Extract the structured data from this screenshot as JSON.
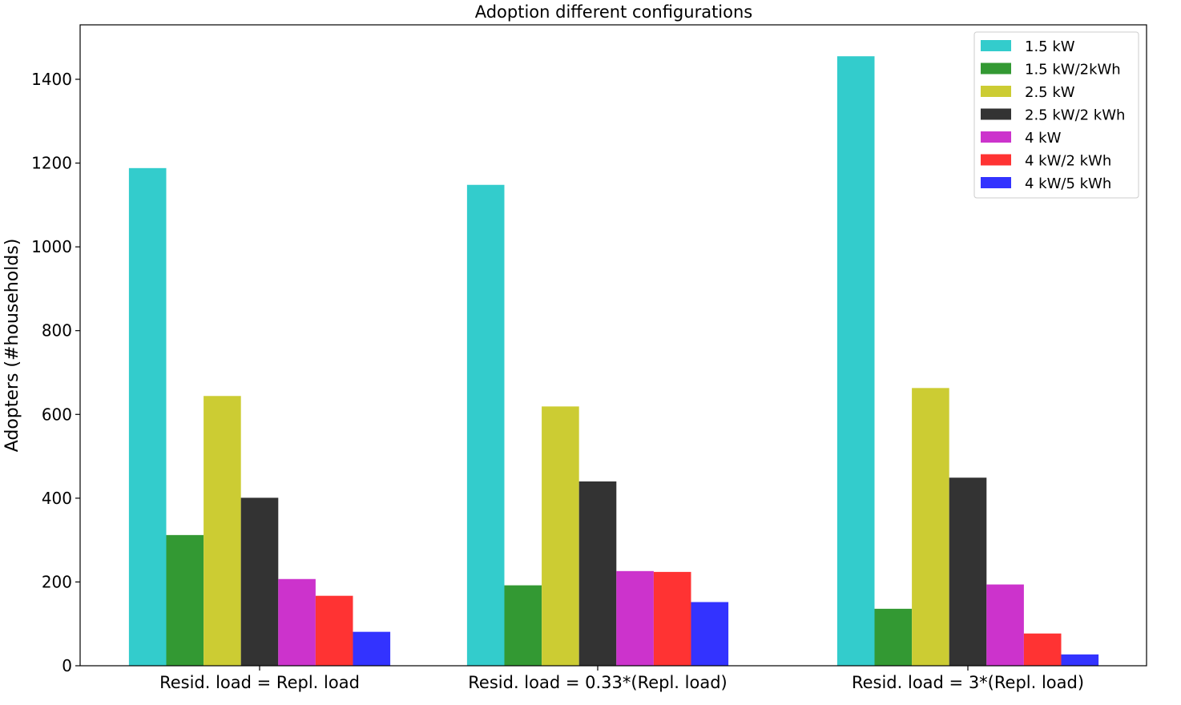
{
  "chart_data": {
    "type": "bar",
    "title": "Adoption different configurations",
    "xlabel": "",
    "ylabel": "Adopters (#households)",
    "ylim": [
      0,
      1530
    ],
    "yticks": [
      0,
      200,
      400,
      600,
      800,
      1000,
      1200,
      1400
    ],
    "grid": false,
    "legend_position": "top-right",
    "categories": [
      "Resid. load = Repl. load",
      "Resid. load = 0.33*(Repl. load)",
      "Resid. load = 3*(Repl. load)"
    ],
    "series": [
      {
        "name": "1.5 kW",
        "color": "#33cccc",
        "values": [
          1188,
          1148,
          1455
        ]
      },
      {
        "name": "1.5 kW/2kWh",
        "color": "#339933",
        "values": [
          312,
          192,
          136
        ]
      },
      {
        "name": "2.5 kW",
        "color": "#cccc33",
        "values": [
          644,
          619,
          663
        ]
      },
      {
        "name": "2.5 kW/2 kWh",
        "color": "#333333",
        "values": [
          401,
          440,
          449
        ]
      },
      {
        "name": "4 kW",
        "color": "#cc33cc",
        "values": [
          207,
          226,
          194
        ]
      },
      {
        "name": "4 kW/2 kWh",
        "color": "#ff3333",
        "values": [
          167,
          224,
          77
        ]
      },
      {
        "name": "4 kW/5 kWh",
        "color": "#3333ff",
        "values": [
          81,
          152,
          27
        ]
      }
    ]
  }
}
